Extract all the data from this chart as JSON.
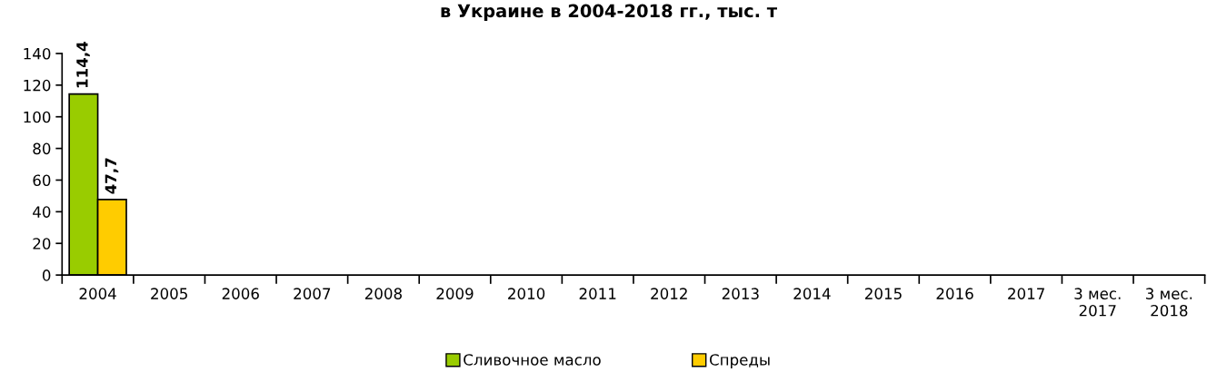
{
  "chart_data": {
    "type": "bar",
    "title": "в Украине в 2004-2018 гг., тыс. т",
    "categories": [
      "2004",
      "2005",
      "2006",
      "2007",
      "2008",
      "2009",
      "2010",
      "2011",
      "2012",
      "2013",
      "2014",
      "2015",
      "2016",
      "2017",
      "3 мес.\n2017",
      "3 мес.\n2018"
    ],
    "series": [
      {
        "name": "Сливочное масло",
        "color": "#99cc00",
        "values": [
          114.4,
          null,
          null,
          null,
          null,
          null,
          null,
          null,
          null,
          null,
          null,
          null,
          null,
          null,
          null,
          null
        ],
        "value_labels": [
          "114,4",
          null,
          null,
          null,
          null,
          null,
          null,
          null,
          null,
          null,
          null,
          null,
          null,
          null,
          null,
          null
        ]
      },
      {
        "name": "Спреды",
        "color": "#ffcc00",
        "values": [
          47.7,
          null,
          null,
          null,
          null,
          null,
          null,
          null,
          null,
          null,
          null,
          null,
          null,
          null,
          null,
          null
        ],
        "value_labels": [
          "47,7",
          null,
          null,
          null,
          null,
          null,
          null,
          null,
          null,
          null,
          null,
          null,
          null,
          null,
          null,
          null
        ]
      }
    ],
    "ylim": [
      0,
      140
    ],
    "yticks": [
      0,
      20,
      40,
      60,
      80,
      100,
      120,
      140
    ],
    "grid": false,
    "legend": "bottom"
  }
}
